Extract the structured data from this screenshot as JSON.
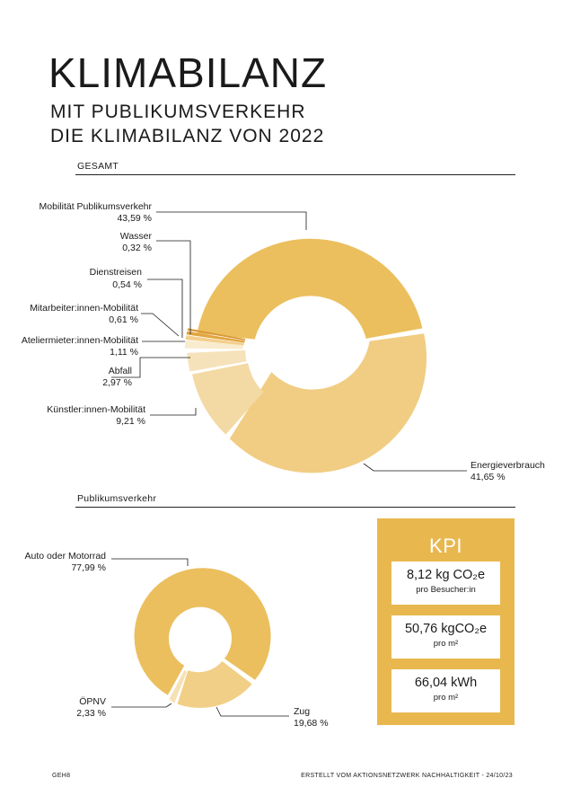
{
  "header": {
    "title": "KLIMABILANZ",
    "subtitle_line1": "MIT PUBLIKUMSVERKEHR",
    "subtitle_line2": "DIE KLIMABILANZ VON 2022"
  },
  "section_gesamt": {
    "label": "GESAMT"
  },
  "section_publikum": {
    "label": "Publikumsverkehr"
  },
  "chart_data": [
    {
      "type": "pie",
      "variant": "donut",
      "slices": [
        {
          "label": "Mobilität Publikumsverkehr",
          "value_text": "43,59 %",
          "value": 43.59,
          "color": "#ebbf5e"
        },
        {
          "label": "Energieverbrauch",
          "value_text": "41,65 %",
          "value": 41.65,
          "color": "#f0cd82"
        },
        {
          "label": "Künstler:innen-Mobilität",
          "value_text": "9,21 %",
          "value": 9.21,
          "color": "#f3d9a4"
        },
        {
          "label": "Abfall",
          "value_text": "2,97 %",
          "value": 2.97,
          "color": "#f6e2ba"
        },
        {
          "label": "Ateliermieter:innen-Mobilität",
          "value_text": "1,11 %",
          "value": 1.11,
          "color": "#f9ebcd"
        },
        {
          "label": "Mitarbeiter:innen-Mobilität",
          "value_text": "0,61 %",
          "value": 0.61,
          "color": "#f2cf8c"
        },
        {
          "label": "Dienstreisen",
          "value_text": "0,54 %",
          "value": 0.54,
          "color": "#e2a53f"
        },
        {
          "label": "Wasser",
          "value_text": "0,32 %",
          "value": 0.32,
          "color": "#d9993a"
        }
      ]
    },
    {
      "type": "pie",
      "variant": "donut",
      "slices": [
        {
          "label": "Auto oder Motorrad",
          "value_text": "77,99 %",
          "value": 77.99,
          "color": "#ebbf5e"
        },
        {
          "label": "Zug",
          "value_text": "19,68 %",
          "value": 19.68,
          "color": "#f1cf86"
        },
        {
          "label": "ÖPNV",
          "value_text": "2,33 %",
          "value": 2.33,
          "color": "#f6e1b4"
        }
      ]
    }
  ],
  "kpi": {
    "title": "KPI",
    "items": [
      {
        "value": "8,12 kg CO₂e",
        "unit": "pro Besucher:in"
      },
      {
        "value": "50,76 kgCO₂e",
        "unit": "pro m²"
      },
      {
        "value": "66,04 kWh",
        "unit": "pro m²"
      }
    ]
  },
  "footer": {
    "left": "GEH8",
    "right": "ERSTELLT VOM AKTIONSNETZWERK NACHHALTIGKEIT -  24/10/23"
  },
  "colors": {
    "accent": "#e8b84f",
    "text": "#1a1a1a"
  }
}
